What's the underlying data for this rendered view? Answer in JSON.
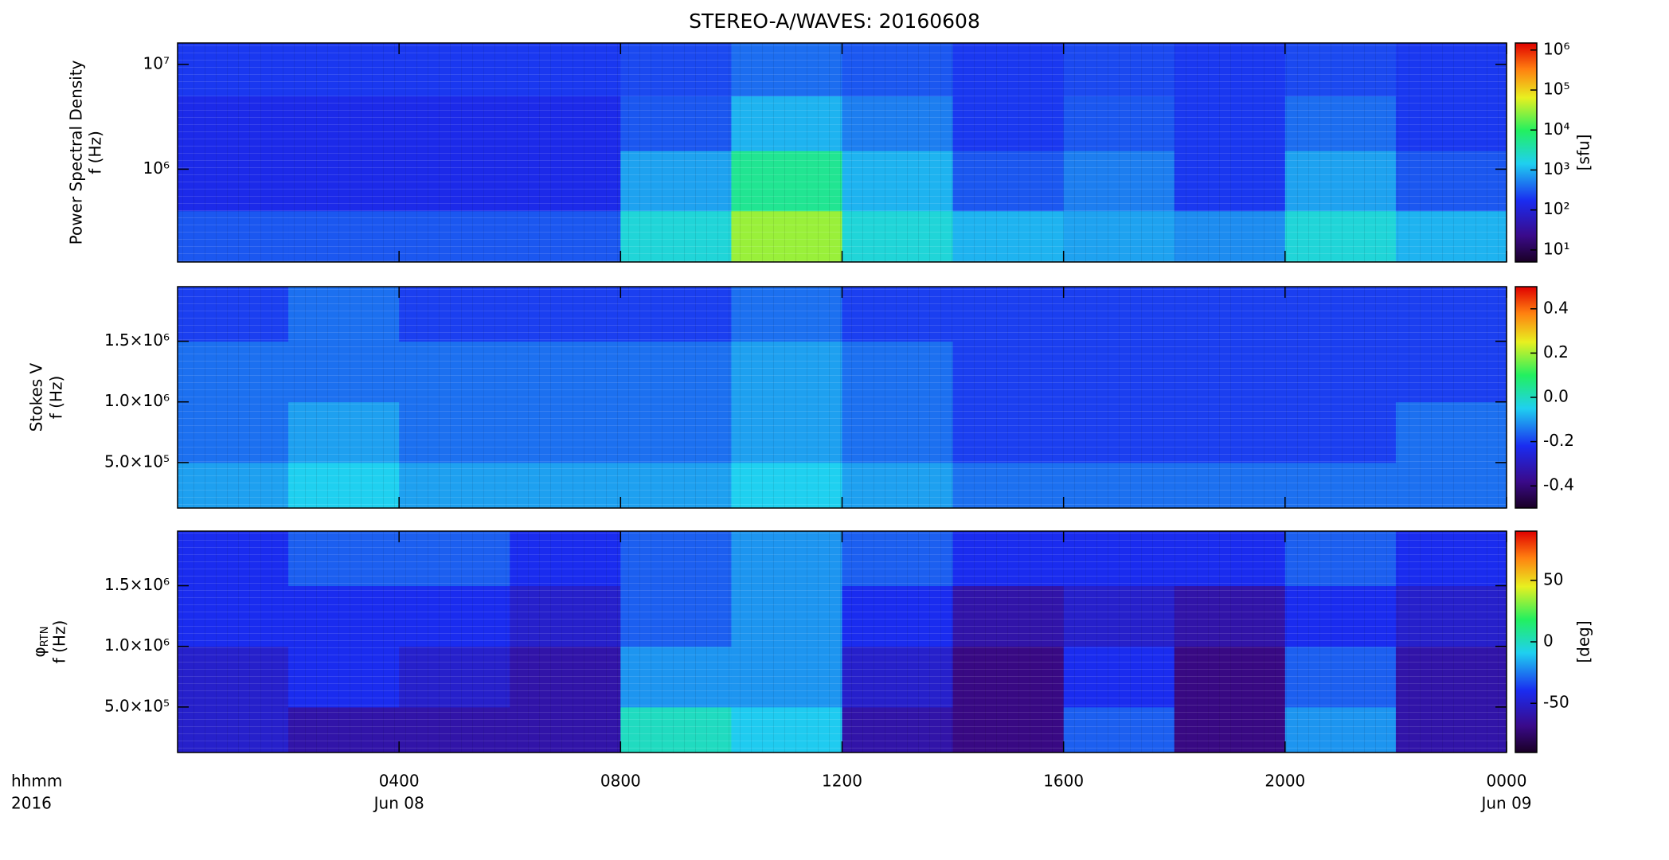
{
  "chart_data": [
    {
      "type": "heatmap",
      "title": "STEREO-A/WAVES: 20160608",
      "ylabel": [
        "Power Spectral Density",
        "f (Hz)"
      ],
      "ylog": true,
      "ylim": [
        130000,
        16000000
      ],
      "yticks": [
        {
          "value": 1000000,
          "label": "10⁶"
        },
        {
          "value": 10000000,
          "label": "10⁷"
        }
      ],
      "xbins": [
        0,
        2,
        4,
        6,
        8,
        10,
        12,
        14,
        16,
        18,
        20,
        22,
        24
      ],
      "ybins": [
        130000,
        400000,
        1500000,
        5000000,
        16000000
      ],
      "z": [
        [
          300,
          300,
          300,
          300,
          2000,
          30000,
          2000,
          1000,
          800,
          600,
          2000,
          1000
        ],
        [
          150,
          150,
          150,
          150,
          800,
          5000,
          1000,
          300,
          500,
          200,
          800,
          300
        ],
        [
          150,
          150,
          150,
          150,
          300,
          1000,
          500,
          200,
          300,
          200,
          400,
          200
        ],
        [
          200,
          200,
          200,
          200,
          250,
          400,
          300,
          200,
          250,
          200,
          250,
          200
        ]
      ],
      "zlog": true,
      "clim": [
        5,
        1500000
      ],
      "cticks": [
        {
          "value": 10,
          "label": "10¹"
        },
        {
          "value": 100,
          "label": "10²"
        },
        {
          "value": 1000,
          "label": "10³"
        },
        {
          "value": 10000,
          "label": "10⁴"
        },
        {
          "value": 100000,
          "label": "10⁵"
        },
        {
          "value": 1000000,
          "label": "10⁶"
        }
      ],
      "clabel": "[sfu]"
    },
    {
      "type": "heatmap",
      "ylabel": [
        "Stokes V",
        "f (Hz)"
      ],
      "ylim": [
        125000,
        1950000
      ],
      "yticks": [
        {
          "value": 500000,
          "label": "5.0×10⁵"
        },
        {
          "value": 1000000,
          "label": "1.0×10⁶"
        },
        {
          "value": 1500000,
          "label": "1.5×10⁶"
        }
      ],
      "xbins": [
        0,
        2,
        4,
        6,
        8,
        10,
        12,
        14,
        16,
        18,
        20,
        22,
        24
      ],
      "ybins": [
        125000,
        500000,
        1000000,
        1500000,
        1950000
      ],
      "z": [
        [
          -0.1,
          -0.05,
          -0.1,
          -0.1,
          -0.1,
          -0.05,
          -0.1,
          -0.15,
          -0.15,
          -0.15,
          -0.15,
          -0.15
        ],
        [
          -0.15,
          -0.1,
          -0.15,
          -0.15,
          -0.15,
          -0.1,
          -0.15,
          -0.2,
          -0.2,
          -0.2,
          -0.2,
          -0.15
        ],
        [
          -0.15,
          -0.15,
          -0.15,
          -0.15,
          -0.15,
          -0.1,
          -0.15,
          -0.2,
          -0.2,
          -0.2,
          -0.2,
          -0.2
        ],
        [
          -0.2,
          -0.15,
          -0.2,
          -0.2,
          -0.2,
          -0.15,
          -0.2,
          -0.2,
          -0.2,
          -0.2,
          -0.2,
          -0.2
        ]
      ],
      "clim": [
        -0.5,
        0.5
      ],
      "cticks": [
        -0.4,
        -0.2,
        {
          "value": 0,
          "label": "0.0"
        },
        0.2,
        0.4
      ]
    },
    {
      "type": "heatmap",
      "ylabel": [
        "φ",
        "f (Hz)"
      ],
      "ylabel_sub": "RTN",
      "ylim": [
        125000,
        1950000
      ],
      "yticks": [
        {
          "value": 500000,
          "label": "5.0×10⁵"
        },
        {
          "value": 1000000,
          "label": "1.0×10⁶"
        },
        {
          "value": 1500000,
          "label": "1.5×10⁶"
        }
      ],
      "xbins": [
        0,
        2,
        4,
        6,
        8,
        10,
        12,
        14,
        16,
        18,
        20,
        22,
        24
      ],
      "ybins": [
        125000,
        500000,
        1000000,
        1500000,
        1950000
      ],
      "z": [
        [
          -50,
          -60,
          -60,
          -60,
          0,
          -10,
          -60,
          -70,
          -30,
          -70,
          -20,
          -60
        ],
        [
          -50,
          -40,
          -50,
          -60,
          -20,
          -20,
          -50,
          -70,
          -40,
          -70,
          -30,
          -60
        ],
        [
          -40,
          -40,
          -40,
          -50,
          -30,
          -20,
          -40,
          -60,
          -50,
          -60,
          -40,
          -50
        ],
        [
          -40,
          -30,
          -30,
          -40,
          -30,
          -20,
          -30,
          -40,
          -40,
          -40,
          -30,
          -40
        ]
      ],
      "clim": [
        -90,
        90
      ],
      "cticks": [
        -50,
        0,
        50
      ],
      "clabel": "[deg]",
      "xlim": [
        0,
        24
      ],
      "xticks": [
        {
          "value": 4,
          "label": "0400"
        },
        {
          "value": 8,
          "label": "0800"
        },
        {
          "value": 12,
          "label": "1200"
        },
        {
          "value": 16,
          "label": "1600"
        },
        {
          "value": 20,
          "label": "2000"
        },
        {
          "value": 24,
          "label": "0000"
        }
      ],
      "xunit": "hhmm",
      "year": "2016",
      "dates": [
        {
          "value": 4,
          "label": "Jun 08"
        },
        {
          "value": 24,
          "label": "Jun 09"
        }
      ]
    }
  ]
}
